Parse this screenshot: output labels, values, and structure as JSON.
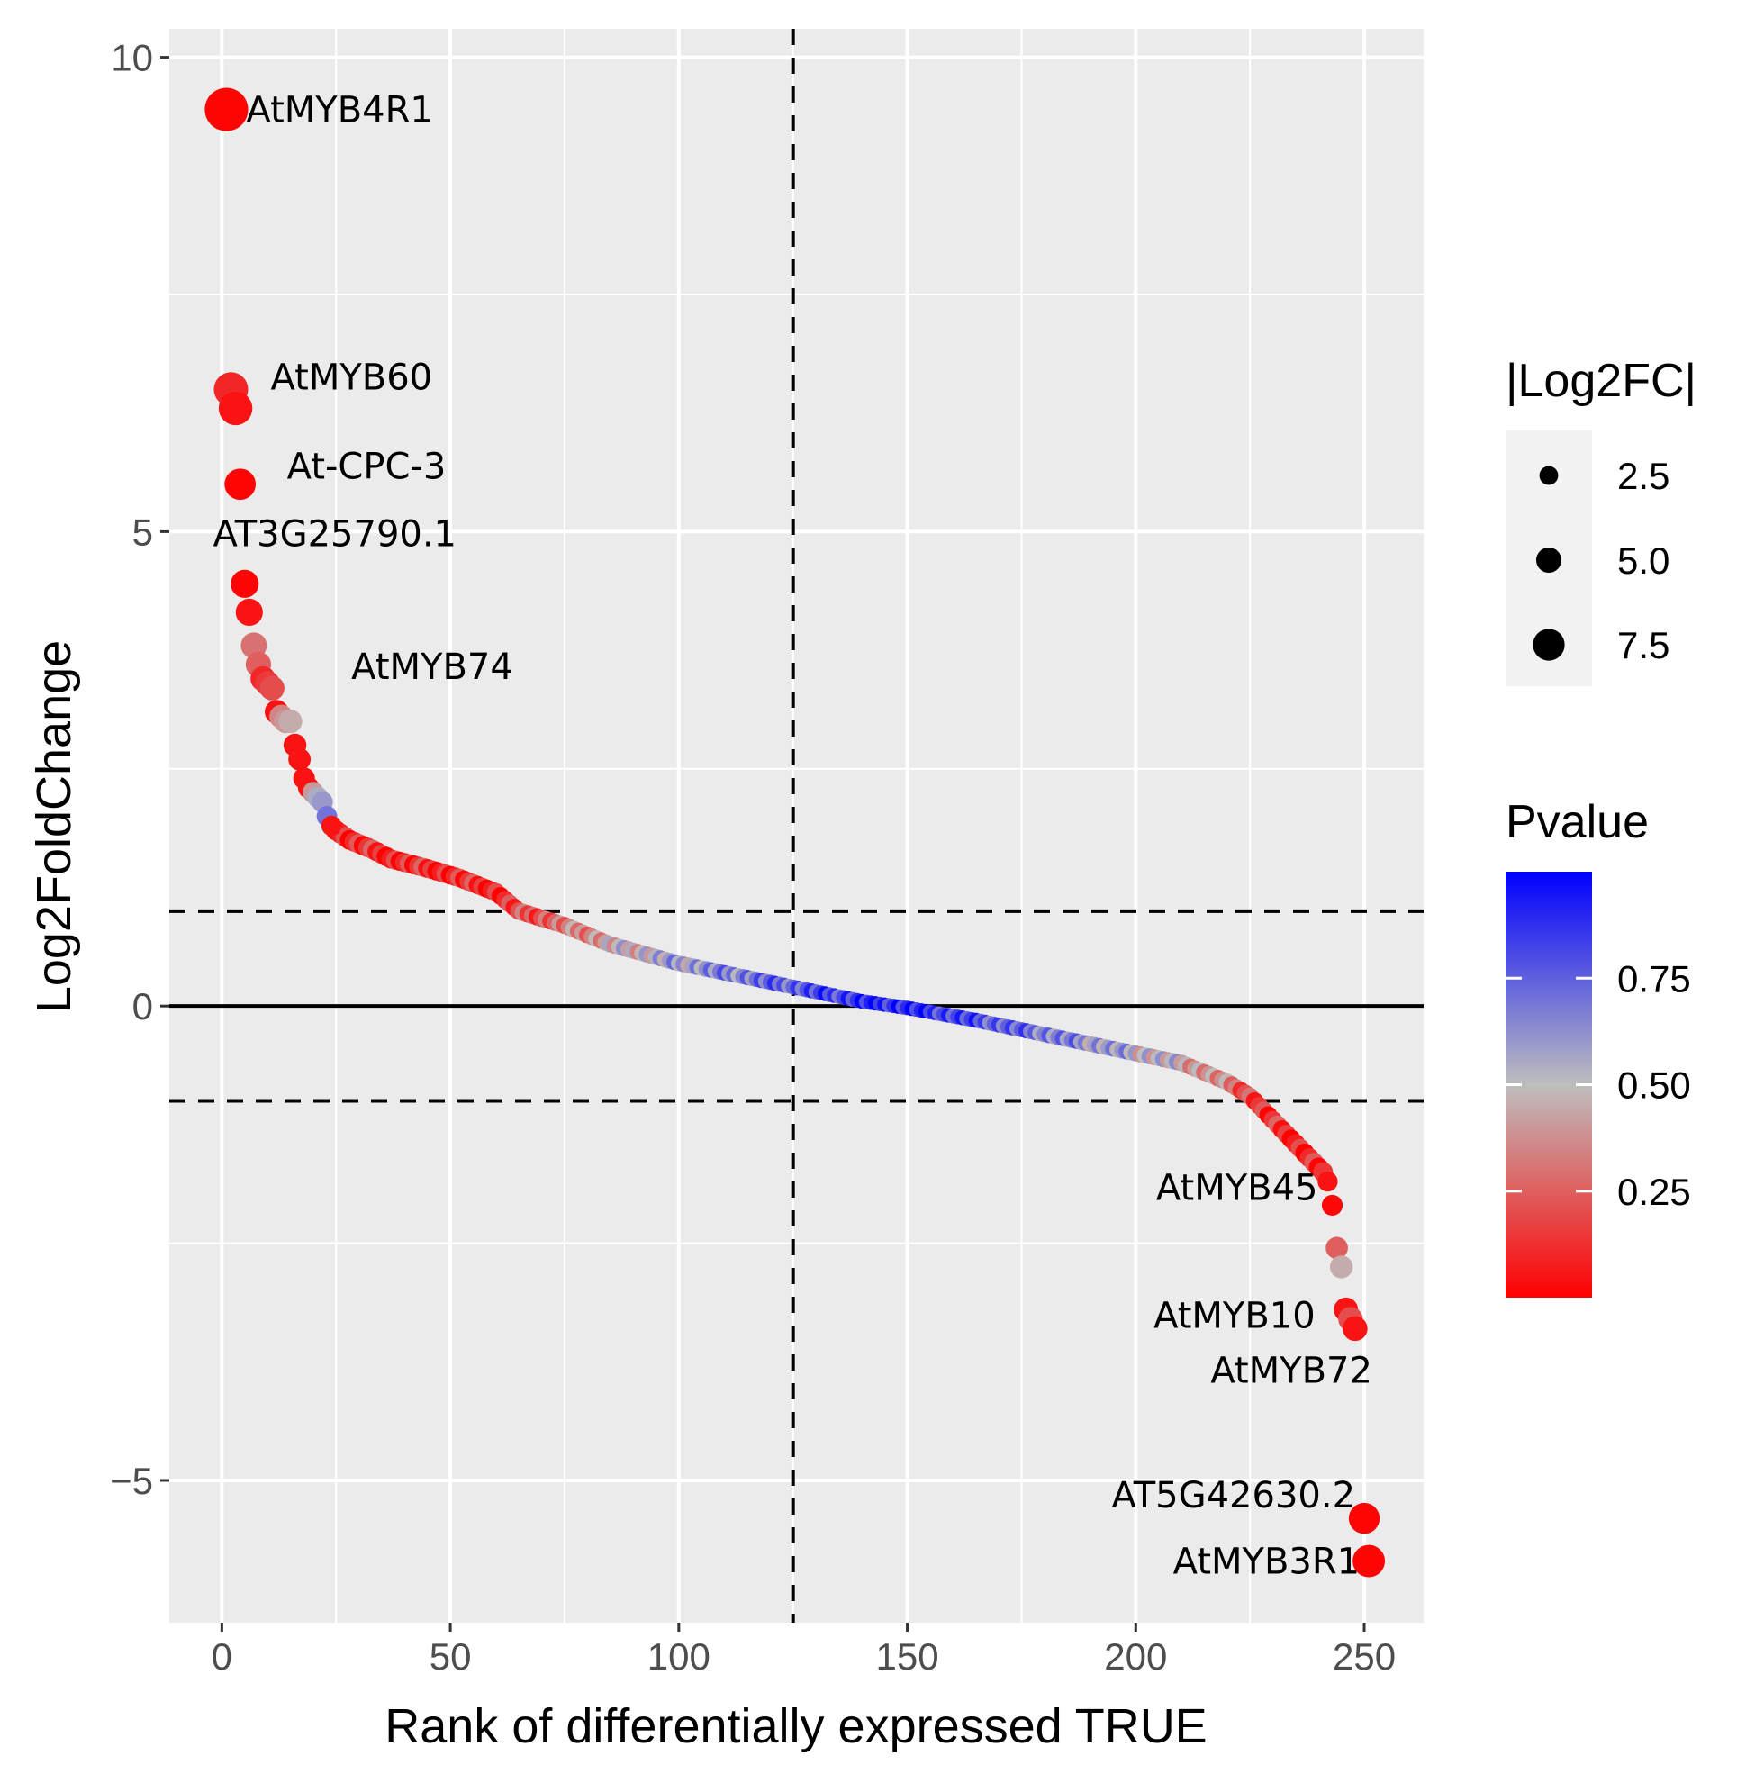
{
  "chart_data": {
    "type": "scatter",
    "xlabel": "Rank of differentially expressed TRUE",
    "ylabel": "Log2FoldChange",
    "xlim": [
      -11.5,
      263
    ],
    "ylim": [
      -6.5,
      10.3
    ],
    "x_ticks": [
      0,
      50,
      100,
      150,
      200,
      250
    ],
    "y_ticks": [
      10,
      5,
      0,
      -5
    ],
    "x_tick_labels": [
      "0",
      "50",
      "100",
      "150",
      "200",
      "250"
    ],
    "y_tick_labels": [
      "10",
      "5",
      "0",
      "−5"
    ],
    "grid": true,
    "reference_lines": {
      "horizontal_solid": 0,
      "horizontal_dashed": [
        1,
        -1
      ],
      "vertical_dashed": 125
    },
    "labels": [
      {
        "text": "AtMYB4R1",
        "x": 1,
        "y": 9.45
      },
      {
        "text": "AtMYB60",
        "x": 2,
        "y": 6.5
      },
      {
        "text": "At-CPC-3",
        "x": 4,
        "y": 5.5
      },
      {
        "text": "AT3G25790.1",
        "x": 5,
        "y": 4.45
      },
      {
        "text": "AtMYB74",
        "x": 11,
        "y": 3.35
      },
      {
        "text": "AtMYB45",
        "x": 243,
        "y": -2.1
      },
      {
        "text": "AtMYB10",
        "x": 246,
        "y": -3.2
      },
      {
        "text": "AtMYB72",
        "x": 249,
        "y": -3.4
      },
      {
        "text": "AT5G42630.2",
        "x": 250,
        "y": -5.4
      },
      {
        "text": "AtMYB3R1",
        "x": 251,
        "y": -5.85
      }
    ],
    "highlight_points": [
      {
        "x": 1,
        "y": 9.45,
        "p": 0.01
      },
      {
        "x": 2,
        "y": 6.5,
        "p": 0.1
      },
      {
        "x": 3,
        "y": 6.3,
        "p": 0.05
      },
      {
        "x": 4,
        "y": 5.5,
        "p": 0.01
      },
      {
        "x": 5,
        "y": 4.45,
        "p": 0.01
      },
      {
        "x": 6,
        "y": 4.15,
        "p": 0.05
      },
      {
        "x": 7,
        "y": 3.8,
        "p": 0.3
      },
      {
        "x": 8,
        "y": 3.6,
        "p": 0.25
      },
      {
        "x": 9,
        "y": 3.45,
        "p": 0.1
      },
      {
        "x": 10,
        "y": 3.4,
        "p": 0.15
      },
      {
        "x": 11,
        "y": 3.35,
        "p": 0.2
      },
      {
        "x": 12,
        "y": 3.1,
        "p": 0.05
      },
      {
        "x": 13,
        "y": 3.05,
        "p": 0.35
      },
      {
        "x": 14,
        "y": 3.0,
        "p": 0.4
      },
      {
        "x": 15,
        "y": 3.0,
        "p": 0.45
      },
      {
        "x": 16,
        "y": 2.75,
        "p": 0.05
      },
      {
        "x": 17,
        "y": 2.6,
        "p": 0.05
      },
      {
        "x": 18,
        "y": 2.4,
        "p": 0.05
      },
      {
        "x": 19,
        "y": 2.3,
        "p": 0.05
      },
      {
        "x": 20,
        "y": 2.25,
        "p": 0.4
      },
      {
        "x": 21,
        "y": 2.2,
        "p": 0.55
      },
      {
        "x": 22,
        "y": 2.15,
        "p": 0.6
      },
      {
        "x": 23,
        "y": 2.0,
        "p": 0.7
      },
      {
        "x": 24,
        "y": 1.9,
        "p": 0.05
      },
      {
        "x": 242,
        "y": -1.85,
        "p": 0.05
      },
      {
        "x": 243,
        "y": -2.1,
        "p": 0.02
      },
      {
        "x": 244,
        "y": -2.55,
        "p": 0.25
      },
      {
        "x": 245,
        "y": -2.75,
        "p": 0.45
      },
      {
        "x": 246,
        "y": -3.2,
        "p": 0.05
      },
      {
        "x": 247,
        "y": -3.3,
        "p": 0.2
      },
      {
        "x": 248,
        "y": -3.4,
        "p": 0.05
      },
      {
        "x": 250,
        "y": -5.4,
        "p": 0.01
      },
      {
        "x": 251,
        "y": -5.85,
        "p": 0.01
      }
    ],
    "curve_knots": [
      {
        "x": 25,
        "y": 1.85
      },
      {
        "x": 28,
        "y": 1.75
      },
      {
        "x": 33,
        "y": 1.65
      },
      {
        "x": 37,
        "y": 1.55
      },
      {
        "x": 45,
        "y": 1.45
      },
      {
        "x": 52,
        "y": 1.35
      },
      {
        "x": 60,
        "y": 1.2
      },
      {
        "x": 65,
        "y": 1.0
      },
      {
        "x": 75,
        "y": 0.85
      },
      {
        "x": 85,
        "y": 0.65
      },
      {
        "x": 100,
        "y": 0.45
      },
      {
        "x": 115,
        "y": 0.3
      },
      {
        "x": 125,
        "y": 0.2
      },
      {
        "x": 140,
        "y": 0.05
      },
      {
        "x": 150,
        "y": -0.02
      },
      {
        "x": 165,
        "y": -0.15
      },
      {
        "x": 180,
        "y": -0.3
      },
      {
        "x": 195,
        "y": -0.45
      },
      {
        "x": 210,
        "y": -0.6
      },
      {
        "x": 220,
        "y": -0.8
      },
      {
        "x": 225,
        "y": -0.95
      },
      {
        "x": 230,
        "y": -1.2
      },
      {
        "x": 235,
        "y": -1.45
      },
      {
        "x": 241,
        "y": -1.75
      }
    ],
    "legend": {
      "size": {
        "title": "|Log2FC|",
        "entries": [
          {
            "label": "2.5",
            "value": 2.5
          },
          {
            "label": "5.0",
            "value": 5.0
          },
          {
            "label": "7.5",
            "value": 7.5
          }
        ]
      },
      "color": {
        "title": "Pvalue",
        "low_color": "#ff0000",
        "mid_color": "#bebebe",
        "high_color": "#0000ff",
        "range": [
          0,
          1
        ],
        "ticks": [
          {
            "label": "0.75",
            "value": 0.75
          },
          {
            "label": "0.50",
            "value": 0.5
          },
          {
            "label": "0.25",
            "value": 0.25
          }
        ]
      }
    },
    "colors": {
      "panel_bg": "#ebebeb",
      "grid": "#ffffff",
      "reference": "#000000"
    }
  }
}
